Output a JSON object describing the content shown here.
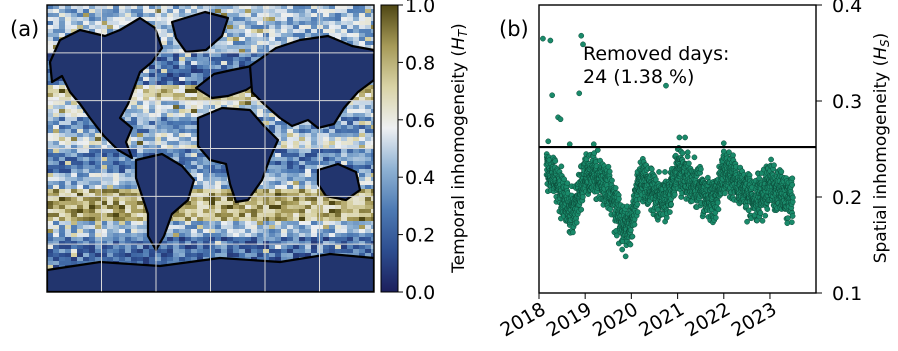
{
  "chart_data": [
    {
      "type": "heatmap",
      "panel_label": "(a)",
      "colorbar": {
        "label": "Temporal inhomogeneity ($H_T$)",
        "label_text": "Temporal inhomogeneity (",
        "label_symbol": "H",
        "label_sub": "T",
        "label_close": ")",
        "range": [
          0.0,
          1.0
        ],
        "ticks": [
          "0.0",
          "0.2",
          "0.4",
          "0.6",
          "0.8",
          "1.0"
        ],
        "colors": [
          "#1c1f5c",
          "#2d4d8f",
          "#4d7ab3",
          "#8fb2d3",
          "#eef0f2",
          "#d9d3a6",
          "#a69a58",
          "#4f4714"
        ]
      },
      "zonal_profile": [
        {
          "lat_from": 90,
          "lat_to": 60,
          "value": 0.45
        },
        {
          "lat_from": 60,
          "lat_to": 40,
          "value": 0.25
        },
        {
          "lat_from": 40,
          "lat_to": 30,
          "value": 0.72
        },
        {
          "lat_from": 30,
          "lat_to": 20,
          "value": 0.5
        },
        {
          "lat_from": 20,
          "lat_to": 10,
          "value": 0.35
        },
        {
          "lat_from": 10,
          "lat_to": 0,
          "value": 0.5
        },
        {
          "lat_from": 0,
          "lat_to": -15,
          "value": 0.3
        },
        {
          "lat_from": -15,
          "lat_to": -25,
          "value": 0.45
        },
        {
          "lat_from": -25,
          "lat_to": -45,
          "value": 0.78
        },
        {
          "lat_from": -45,
          "lat_to": -55,
          "value": 0.45
        },
        {
          "lat_from": -55,
          "lat_to": -90,
          "value": 0.25
        }
      ],
      "grid": "on"
    },
    {
      "type": "scatter",
      "panel_label": "(b)",
      "ylabel": "Spatial inhomogeneity ($H_S$)",
      "ylabel_text": "Spatial inhomogeneity (",
      "ylabel_symbol": "H",
      "ylabel_sub": "S",
      "ylabel_close": ")",
      "yaxis_side": "right",
      "ylim": [
        0.1,
        0.4
      ],
      "yticks": [
        "0.1",
        "0.2",
        "0.3",
        "0.4"
      ],
      "xlim": [
        "2018-01-01",
        "2023-12-31"
      ],
      "xticks": [
        "2018",
        "2019",
        "2020",
        "2021",
        "2022",
        "2023"
      ],
      "threshold": 0.252,
      "annotation_line1": "Removed days:",
      "annotation_line2": "24 (1.38 %)",
      "marker_color": "#1a8a6a",
      "marker_edge": "#0b4a38",
      "trend": [
        {
          "x": "2018-03-01",
          "y": 0.232
        },
        {
          "x": "2018-05-01",
          "y": 0.222
        },
        {
          "x": "2018-07-01",
          "y": 0.205
        },
        {
          "x": "2018-09-01",
          "y": 0.183
        },
        {
          "x": "2018-11-01",
          "y": 0.195
        },
        {
          "x": "2019-01-01",
          "y": 0.222
        },
        {
          "x": "2019-03-01",
          "y": 0.224
        },
        {
          "x": "2019-05-01",
          "y": 0.218
        },
        {
          "x": "2019-07-01",
          "y": 0.21
        },
        {
          "x": "2019-09-01",
          "y": 0.19
        },
        {
          "x": "2019-11-01",
          "y": 0.165
        },
        {
          "x": "2020-01-01",
          "y": 0.172
        },
        {
          "x": "2020-03-01",
          "y": 0.218
        },
        {
          "x": "2020-05-01",
          "y": 0.214
        },
        {
          "x": "2020-07-01",
          "y": 0.206
        },
        {
          "x": "2020-09-01",
          "y": 0.194
        },
        {
          "x": "2020-11-01",
          "y": 0.207
        },
        {
          "x": "2021-01-01",
          "y": 0.232
        },
        {
          "x": "2021-03-01",
          "y": 0.224
        },
        {
          "x": "2021-05-01",
          "y": 0.216
        },
        {
          "x": "2021-07-01",
          "y": 0.206
        },
        {
          "x": "2021-09-01",
          "y": 0.196
        },
        {
          "x": "2021-11-01",
          "y": 0.198
        },
        {
          "x": "2022-01-01",
          "y": 0.227
        },
        {
          "x": "2022-03-01",
          "y": 0.225
        },
        {
          "x": "2022-05-01",
          "y": 0.213
        },
        {
          "x": "2022-07-01",
          "y": 0.205
        },
        {
          "x": "2022-09-01",
          "y": 0.196
        },
        {
          "x": "2022-11-01",
          "y": 0.202
        },
        {
          "x": "2023-01-01",
          "y": 0.213
        },
        {
          "x": "2023-03-01",
          "y": 0.208
        },
        {
          "x": "2023-05-01",
          "y": 0.2
        },
        {
          "x": "2023-07-01",
          "y": 0.203
        }
      ],
      "outliers": [
        {
          "x": "2018-02-01",
          "y": 0.365
        },
        {
          "x": "2018-04-01",
          "y": 0.363
        },
        {
          "x": "2018-04-15",
          "y": 0.306
        },
        {
          "x": "2018-06-01",
          "y": 0.283
        },
        {
          "x": "2018-11-15",
          "y": 0.308
        },
        {
          "x": "2018-12-01",
          "y": 0.368
        },
        {
          "x": "2018-12-15",
          "y": 0.359
        },
        {
          "x": "2018-03-15",
          "y": 0.258
        },
        {
          "x": "2018-06-20",
          "y": 0.281
        },
        {
          "x": "2020-10-01",
          "y": 0.316
        },
        {
          "x": "2021-01-15",
          "y": 0.262
        },
        {
          "x": "2021-03-01",
          "y": 0.262
        },
        {
          "x": "2022-01-01",
          "y": 0.256
        },
        {
          "x": "2019-03-10",
          "y": 0.255
        },
        {
          "x": "2018-09-01",
          "y": 0.255
        }
      ]
    }
  ]
}
